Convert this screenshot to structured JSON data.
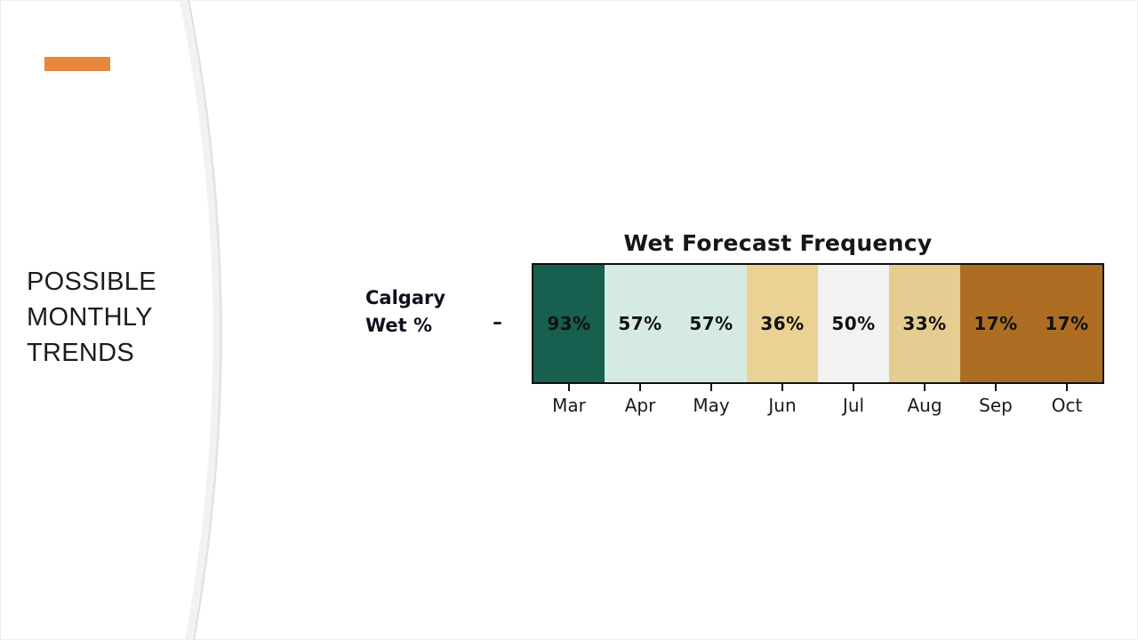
{
  "slide": {
    "title": "POSSIBLE MONTHLY TRENDS",
    "accent_color": "#E8873B",
    "arc_color": "#E2E2E2"
  },
  "chart_data": {
    "type": "heatmap",
    "title": "Wet Forecast Frequency",
    "row_label_line1": "Calgary",
    "row_label_line2": "Wet %",
    "categories": [
      "Mar",
      "Apr",
      "May",
      "Jun",
      "Jul",
      "Aug",
      "Sep",
      "Oct"
    ],
    "values": [
      93,
      57,
      57,
      36,
      50,
      33,
      17,
      17
    ],
    "value_labels": [
      "93%",
      "57%",
      "57%",
      "36%",
      "50%",
      "33%",
      "17%",
      "17%"
    ],
    "cell_colors": [
      "#175F4E",
      "#D5EBE2",
      "#D5EBE2",
      "#E9D294",
      "#F2F2F0",
      "#E5CD92",
      "#AD6E24",
      "#AD6E24"
    ],
    "value_text_color": "#111111",
    "border_color": "#111111",
    "legend_position": "none",
    "grid": false
  }
}
